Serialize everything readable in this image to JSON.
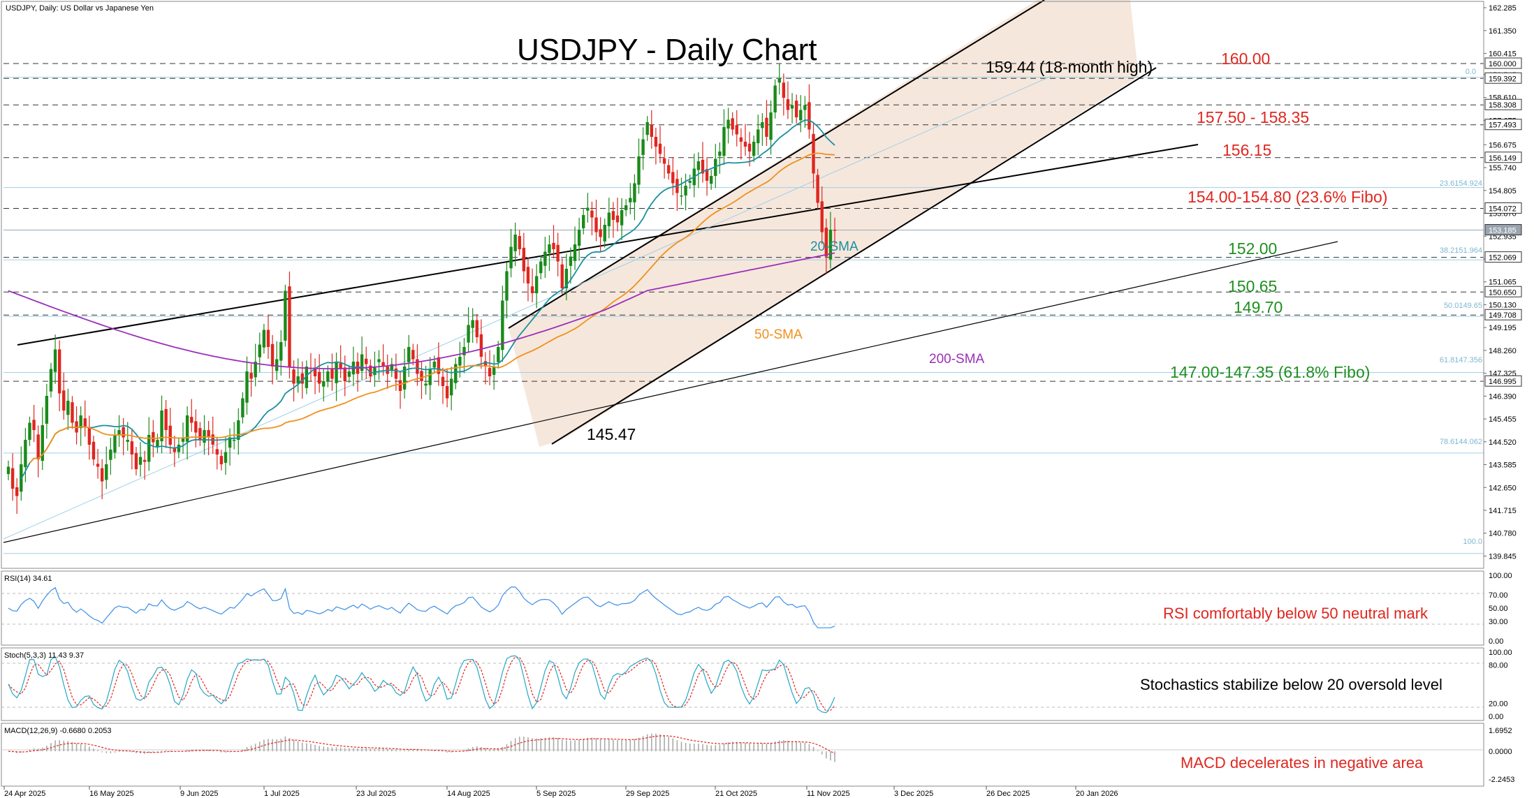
{
  "header": {
    "symbol_label": "USDJPY, Daily:  US Dollar vs Japanese Yen",
    "title": "USDJPY - Daily Chart"
  },
  "colors": {
    "up": "#1a8a1a",
    "down": "#e0261f",
    "sma20": "#1b8fa0",
    "sma50": "#f0901c",
    "sma200": "#9b2fb8",
    "channel_fill": "#f5e3d6",
    "red_text": "#e0261f",
    "green_text": "#1f8f1f",
    "fib_line": "#9fd0e6",
    "rsi": "#3a8ee6",
    "stoch_main": "#25a7c4",
    "stoch_signal": "#e0261f",
    "macd_signal": "#e0261f",
    "macd_hist": "#aaaaaa"
  },
  "price_axis": {
    "ticks": [
      "162.285",
      "161.350",
      "160.415",
      "159.545",
      "158.610",
      "157.675",
      "156.675",
      "155.740",
      "154.805",
      "153.870",
      "152.935",
      "152.000",
      "151.065",
      "150.130",
      "149.195",
      "148.260",
      "147.325",
      "146.390",
      "145.455",
      "144.520",
      "143.585",
      "142.650",
      "141.715",
      "140.780",
      "139.845"
    ],
    "boxed": [
      {
        "label": "160.000",
        "price": 160.0
      },
      {
        "label": "159.392",
        "price": 159.392
      },
      {
        "label": "158.308",
        "price": 158.308
      },
      {
        "label": "157.493",
        "price": 157.493
      },
      {
        "label": "156.149",
        "price": 156.149
      },
      {
        "label": "154.072",
        "price": 154.072
      },
      {
        "label": "153.185",
        "price": 153.185
      },
      {
        "label": "152.069",
        "price": 152.069
      },
      {
        "label": "150.650",
        "price": 150.65
      },
      {
        "label": "149.708",
        "price": 149.708
      },
      {
        "label": "146.995",
        "price": 146.995
      }
    ]
  },
  "x_axis": {
    "labels": [
      "24 Apr 2025",
      "16 May 2025",
      "9 Jun 2025",
      "1 Jul 2025",
      "23 Jul 2025",
      "14 Aug 2025",
      "5 Sep 2025",
      "29 Sep 2025",
      "21 Oct 2025",
      "11 Nov 2025",
      "3 Dec 2025",
      "26 Dec 2025",
      "20 Jan 2026"
    ]
  },
  "annotations": {
    "ann_15944": "159.44 (18-month high)",
    "ann_16000": "160.00",
    "ann_15750": "157.50 - 158.35",
    "ann_15615": "156.15",
    "ann_15400": "154.00-154.80 (23.6% Fibo)",
    "ann_15200": "152.00",
    "ann_15065": "150.65",
    "ann_14970": "149.70",
    "ann_14700": "147.00-147.35 (61.8% Fibo)",
    "ann_14547": "145.47",
    "label_sma20": "20-SMA",
    "label_sma50": "50-SMA",
    "label_sma200": "200-SMA"
  },
  "fib_labels": {
    "f0": "0.0",
    "f236": "23.6154.924",
    "f382": "38.2151.964",
    "f500": "50.0149.65",
    "f618": "61.8147.356",
    "f786": "78.6144.062",
    "f100": "100.0"
  },
  "rsi_panel": {
    "label": "RSI(14) 34.61",
    "ticks": [
      "100.00",
      "70.00",
      "50.00",
      "30.00",
      "0.00"
    ],
    "note": "RSI comfortably below 50 neutral mark"
  },
  "stoch_panel": {
    "label": "Stoch(5,3,3) 11.43 9.37",
    "ticks": [
      "100.00",
      "80.00",
      "20.00",
      "0.00"
    ],
    "note": "Stochastics stabilize below 20 oversold level"
  },
  "macd_panel": {
    "label": "MACD(12,26,9) -0.6680 0.2053",
    "ticks": [
      "1.6952",
      "0.0000",
      "-2.2453"
    ],
    "note": "MACD decelerates in negative area"
  },
  "chart_data": {
    "type": "candlestick",
    "title": "USDJPY - Daily Chart",
    "symbol": "USDJPY",
    "timeframe": "Daily",
    "ylim": [
      139.4,
      162.6
    ],
    "x_range": [
      "24 Apr 2025",
      "20 Jan 2026"
    ],
    "grid": false,
    "key_levels": [
      {
        "label": "160.00",
        "value": 160.0
      },
      {
        "label": "159.44 (18-month high)",
        "value": 159.44
      },
      {
        "label": "157.50 - 158.35",
        "values": [
          157.5,
          158.35
        ]
      },
      {
        "label": "156.15",
        "value": 156.15
      },
      {
        "label": "154.00-154.80 (23.6% Fibo)",
        "values": [
          154.0,
          154.8
        ]
      },
      {
        "label": "152.00",
        "value": 152.0
      },
      {
        "label": "150.65",
        "value": 150.65
      },
      {
        "label": "149.70",
        "value": 149.7
      },
      {
        "label": "147.00-147.35 (61.8% Fibo)",
        "values": [
          147.0,
          147.35
        ]
      },
      {
        "label": "145.47",
        "value": 145.47
      }
    ],
    "fibonacci": [
      {
        "level": "0.0",
        "price": 159.44
      },
      {
        "level": "23.6",
        "price": 154.924
      },
      {
        "level": "38.2",
        "price": 151.964
      },
      {
        "level": "50.0",
        "price": 149.65
      },
      {
        "level": "61.8",
        "price": 147.356
      },
      {
        "level": "78.6",
        "price": 144.062
      },
      {
        "level": "100.0",
        "price": 139.95
      }
    ],
    "moving_averages": [
      "20-SMA",
      "50-SMA",
      "200-SMA"
    ],
    "closes": [
      143.5,
      142.6,
      142.3,
      143.6,
      144.6,
      145.3,
      145.0,
      143.8,
      145.2,
      146.4,
      147.5,
      148.3,
      146.5,
      145.8,
      146.2,
      145.3,
      144.9,
      145.6,
      145.1,
      144.4,
      143.8,
      143.5,
      142.9,
      143.6,
      144.2,
      144.8,
      145.0,
      144.7,
      144.6,
      144.0,
      143.4,
      143.9,
      143.7,
      144.8,
      144.5,
      144.6,
      145.8,
      145.0,
      144.4,
      144.1,
      144.4,
      144.7,
      145.6,
      145.3,
      144.9,
      144.6,
      145.0,
      144.7,
      144.4,
      144.0,
      143.6,
      144.1,
      144.7,
      144.6,
      145.4,
      146.3,
      147.4,
      147.1,
      147.8,
      148.5,
      149.1,
      148.4,
      147.6,
      147.9,
      148.6,
      150.7,
      147.6,
      146.9,
      147.2,
      146.9,
      147.6,
      147.5,
      147.2,
      146.9,
      147.0,
      147.4,
      147.1,
      147.8,
      147.5,
      147.0,
      147.4,
      147.8,
      147.3,
      148.1,
      147.7,
      147.2,
      147.6,
      147.9,
      147.6,
      147.3,
      147.7,
      147.1,
      146.6,
      147.6,
      148.4,
      147.9,
      147.3,
      147.0,
      146.9,
      147.5,
      147.8,
      147.3,
      146.8,
      146.3,
      147.1,
      147.7,
      148.0,
      148.4,
      149.3,
      149.5,
      148.8,
      148.0,
      147.6,
      147.2,
      147.6,
      148.4,
      150.3,
      151.5,
      152.5,
      153.0,
      152.4,
      151.5,
      151.0,
      150.6,
      151.3,
      151.9,
      152.3,
      152.6,
      152.4,
      151.9,
      150.8,
      151.6,
      152.1,
      152.6,
      153.2,
      153.8,
      154.1,
      153.7,
      153.1,
      152.9,
      153.4,
      153.9,
      153.6,
      153.5,
      154.0,
      154.2,
      154.5,
      155.1,
      156.2,
      156.9,
      157.6,
      157.0,
      156.6,
      156.3,
      155.9,
      155.5,
      155.1,
      154.7,
      154.6,
      155.0,
      155.2,
      155.7,
      156.0,
      155.5,
      155.2,
      155.4,
      156.1,
      156.4,
      157.4,
      157.7,
      157.3,
      157.1,
      156.8,
      156.6,
      156.4,
      156.8,
      157.3,
      157.6,
      157.0,
      158.0,
      159.1,
      159.4,
      158.6,
      158.1,
      158.3,
      157.8,
      158.1,
      158.3,
      157.3,
      155.5,
      154.3,
      153.1,
      152.1,
      153.2,
      153.185
    ]
  }
}
